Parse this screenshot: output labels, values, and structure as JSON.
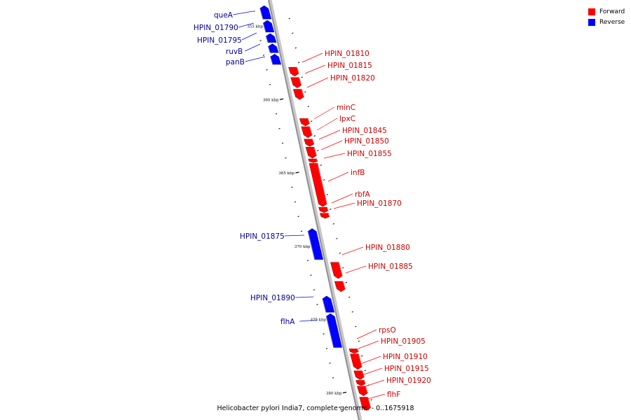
{
  "caption": "Helicobacter pylori India7, complete genome. - 0..1675918",
  "legend": {
    "items": [
      {
        "label": "Forward",
        "color": "#ff0000"
      },
      {
        "label": "Reverse",
        "color": "#0000ff"
      }
    ]
  },
  "colors": {
    "forward": "#ff0000",
    "forward_text": "#cc0000",
    "reverse": "#0000ff",
    "reverse_text": "#000099",
    "backbone": "#909090"
  },
  "scale": {
    "start_kbp": 353.6,
    "end_kbp": 381.2,
    "tick_labels": [
      "355 kbp",
      "360 kbp",
      "365 kbp",
      "370 kbp",
      "375 kbp",
      "380 kbp"
    ]
  },
  "genes": [
    {
      "name": "queA",
      "strand": "reverse",
      "start_kbp": 353.6,
      "end_kbp": 354.5
    },
    {
      "name": "HPIN_01790",
      "strand": "reverse",
      "start_kbp": 354.6,
      "end_kbp": 355.4
    },
    {
      "name": "HPIN_01795",
      "strand": "reverse",
      "start_kbp": 355.5,
      "end_kbp": 356.1
    },
    {
      "name": "ruvB",
      "strand": "reverse",
      "start_kbp": 356.2,
      "end_kbp": 356.8
    },
    {
      "name": "panB",
      "strand": "reverse",
      "start_kbp": 356.9,
      "end_kbp": 357.6
    },
    {
      "name": "HPIN_01810",
      "strand": "forward",
      "start_kbp": 357.8,
      "end_kbp": 358.4
    },
    {
      "name": "HPIN_01815",
      "strand": "forward",
      "start_kbp": 358.5,
      "end_kbp": 359.2
    },
    {
      "name": "HPIN_01820",
      "strand": "forward",
      "start_kbp": 359.3,
      "end_kbp": 360.0
    },
    {
      "name": "minC",
      "strand": "forward",
      "start_kbp": 361.3,
      "end_kbp": 361.8
    },
    {
      "name": "lpxC",
      "strand": "forward",
      "start_kbp": 361.85,
      "end_kbp": 362.6
    },
    {
      "name": "HPIN_01845",
      "strand": "forward",
      "start_kbp": 362.7,
      "end_kbp": 363.2
    },
    {
      "name": "HPIN_01850",
      "strand": "forward",
      "start_kbp": 363.25,
      "end_kbp": 364.0
    },
    {
      "name": "HPIN_01855",
      "strand": "forward",
      "start_kbp": 364.05,
      "end_kbp": 364.3
    },
    {
      "name": "infB",
      "strand": "forward",
      "start_kbp": 364.35,
      "end_kbp": 367.3
    },
    {
      "name": "rbfA",
      "strand": "forward",
      "start_kbp": 367.35,
      "end_kbp": 367.7
    },
    {
      "name": "HPIN_01870",
      "strand": "forward",
      "start_kbp": 367.75,
      "end_kbp": 368.1
    },
    {
      "name": "HPIN_01875",
      "strand": "reverse",
      "start_kbp": 368.8,
      "end_kbp": 370.9
    },
    {
      "name": "HPIN_01880",
      "strand": "forward",
      "start_kbp": 371.1,
      "end_kbp": 372.2
    },
    {
      "name": "HPIN_01885",
      "strand": "forward",
      "start_kbp": 372.4,
      "end_kbp": 373.1
    },
    {
      "name": "HPIN_01890",
      "strand": "reverse",
      "start_kbp": 373.4,
      "end_kbp": 374.5
    },
    {
      "name": "flhA",
      "strand": "reverse",
      "start_kbp": 374.6,
      "end_kbp": 376.9
    },
    {
      "name": "rpsO",
      "strand": "forward",
      "start_kbp": 377.0,
      "end_kbp": 377.3
    },
    {
      "name": "HPIN_01905",
      "strand": "forward",
      "start_kbp": 377.35,
      "end_kbp": 378.4
    },
    {
      "name": "HPIN_01910",
      "strand": "forward",
      "start_kbp": 378.5,
      "end_kbp": 379.1
    },
    {
      "name": "HPIN_01915",
      "strand": "forward",
      "start_kbp": 379.15,
      "end_kbp": 379.5
    },
    {
      "name": "HPIN_01920",
      "strand": "forward",
      "start_kbp": 379.55,
      "end_kbp": 380.2
    },
    {
      "name": "flhF",
      "strand": "forward",
      "start_kbp": 380.3,
      "end_kbp": 381.2
    }
  ]
}
